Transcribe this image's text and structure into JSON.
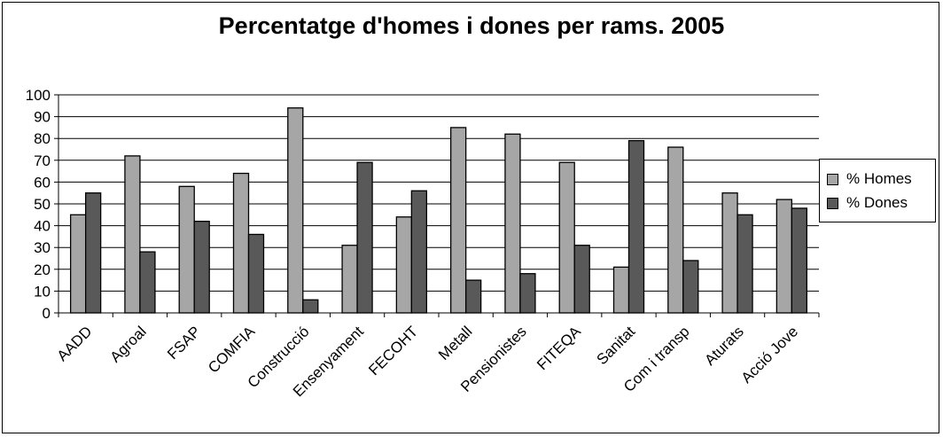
{
  "chart_data": {
    "type": "bar",
    "title": "Percentatge d'homes i dones per rams. 2005",
    "categories": [
      "AADD",
      "Agroal",
      "FSAP",
      "COMFIA",
      "Construcció",
      "Ensenyament",
      "FECOHT",
      "Metall",
      "Pensionistes",
      "FITEQA",
      "Sanitat",
      "Com i transp",
      "Aturats",
      "Acció Jove"
    ],
    "series": [
      {
        "name": "% Homes",
        "color": "#a6a6a6",
        "values": [
          45,
          72,
          58,
          64,
          94,
          31,
          44,
          85,
          82,
          69,
          21,
          76,
          55,
          52
        ]
      },
      {
        "name": "% Dones",
        "color": "#595959",
        "values": [
          55,
          28,
          42,
          36,
          6,
          69,
          56,
          15,
          18,
          31,
          79,
          24,
          45,
          48
        ]
      }
    ],
    "ylim": [
      0,
      100
    ],
    "yticks": [
      0,
      10,
      20,
      30,
      40,
      50,
      60,
      70,
      80,
      90,
      100
    ],
    "grid": true,
    "legend_position": "right"
  }
}
